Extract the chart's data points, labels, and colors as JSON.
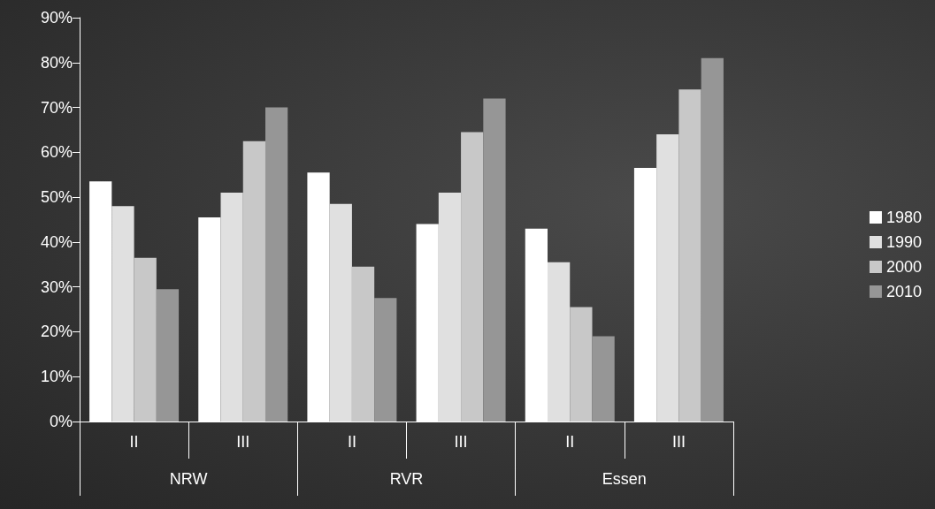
{
  "chart_data": {
    "type": "bar",
    "categories": [
      "II",
      "III",
      "II",
      "III",
      "II",
      "III"
    ],
    "annotations": [
      "NRW",
      "RVR",
      "Essen"
    ],
    "series": [
      {
        "name": "1980",
        "color": "#ffffff",
        "values": [
          53.5,
          45.5,
          55.5,
          44,
          43,
          56.5
        ]
      },
      {
        "name": "1990",
        "color": "#e0e0e0",
        "values": [
          48,
          51,
          48.5,
          51,
          35.5,
          64
        ]
      },
      {
        "name": "2000",
        "color": "#c8c8c8",
        "values": [
          36.5,
          62.5,
          34.5,
          64.5,
          25.5,
          74
        ]
      },
      {
        "name": "2010",
        "color": "#969696",
        "values": [
          29.5,
          70,
          27.5,
          72,
          19,
          81
        ]
      }
    ],
    "ylim": [
      0,
      90
    ],
    "yticks": [
      {
        "value": 0,
        "label": "0%"
      },
      {
        "value": 10,
        "label": "10%"
      },
      {
        "value": 20,
        "label": "20%"
      },
      {
        "value": 30,
        "label": "30%"
      },
      {
        "value": 40,
        "label": "40%"
      },
      {
        "value": 50,
        "label": "50%"
      },
      {
        "value": 60,
        "label": "60%"
      },
      {
        "value": 70,
        "label": "70%"
      },
      {
        "value": 80,
        "label": "80%"
      },
      {
        "value": 90,
        "label": "90%"
      }
    ],
    "grid": false,
    "legend": "right"
  }
}
